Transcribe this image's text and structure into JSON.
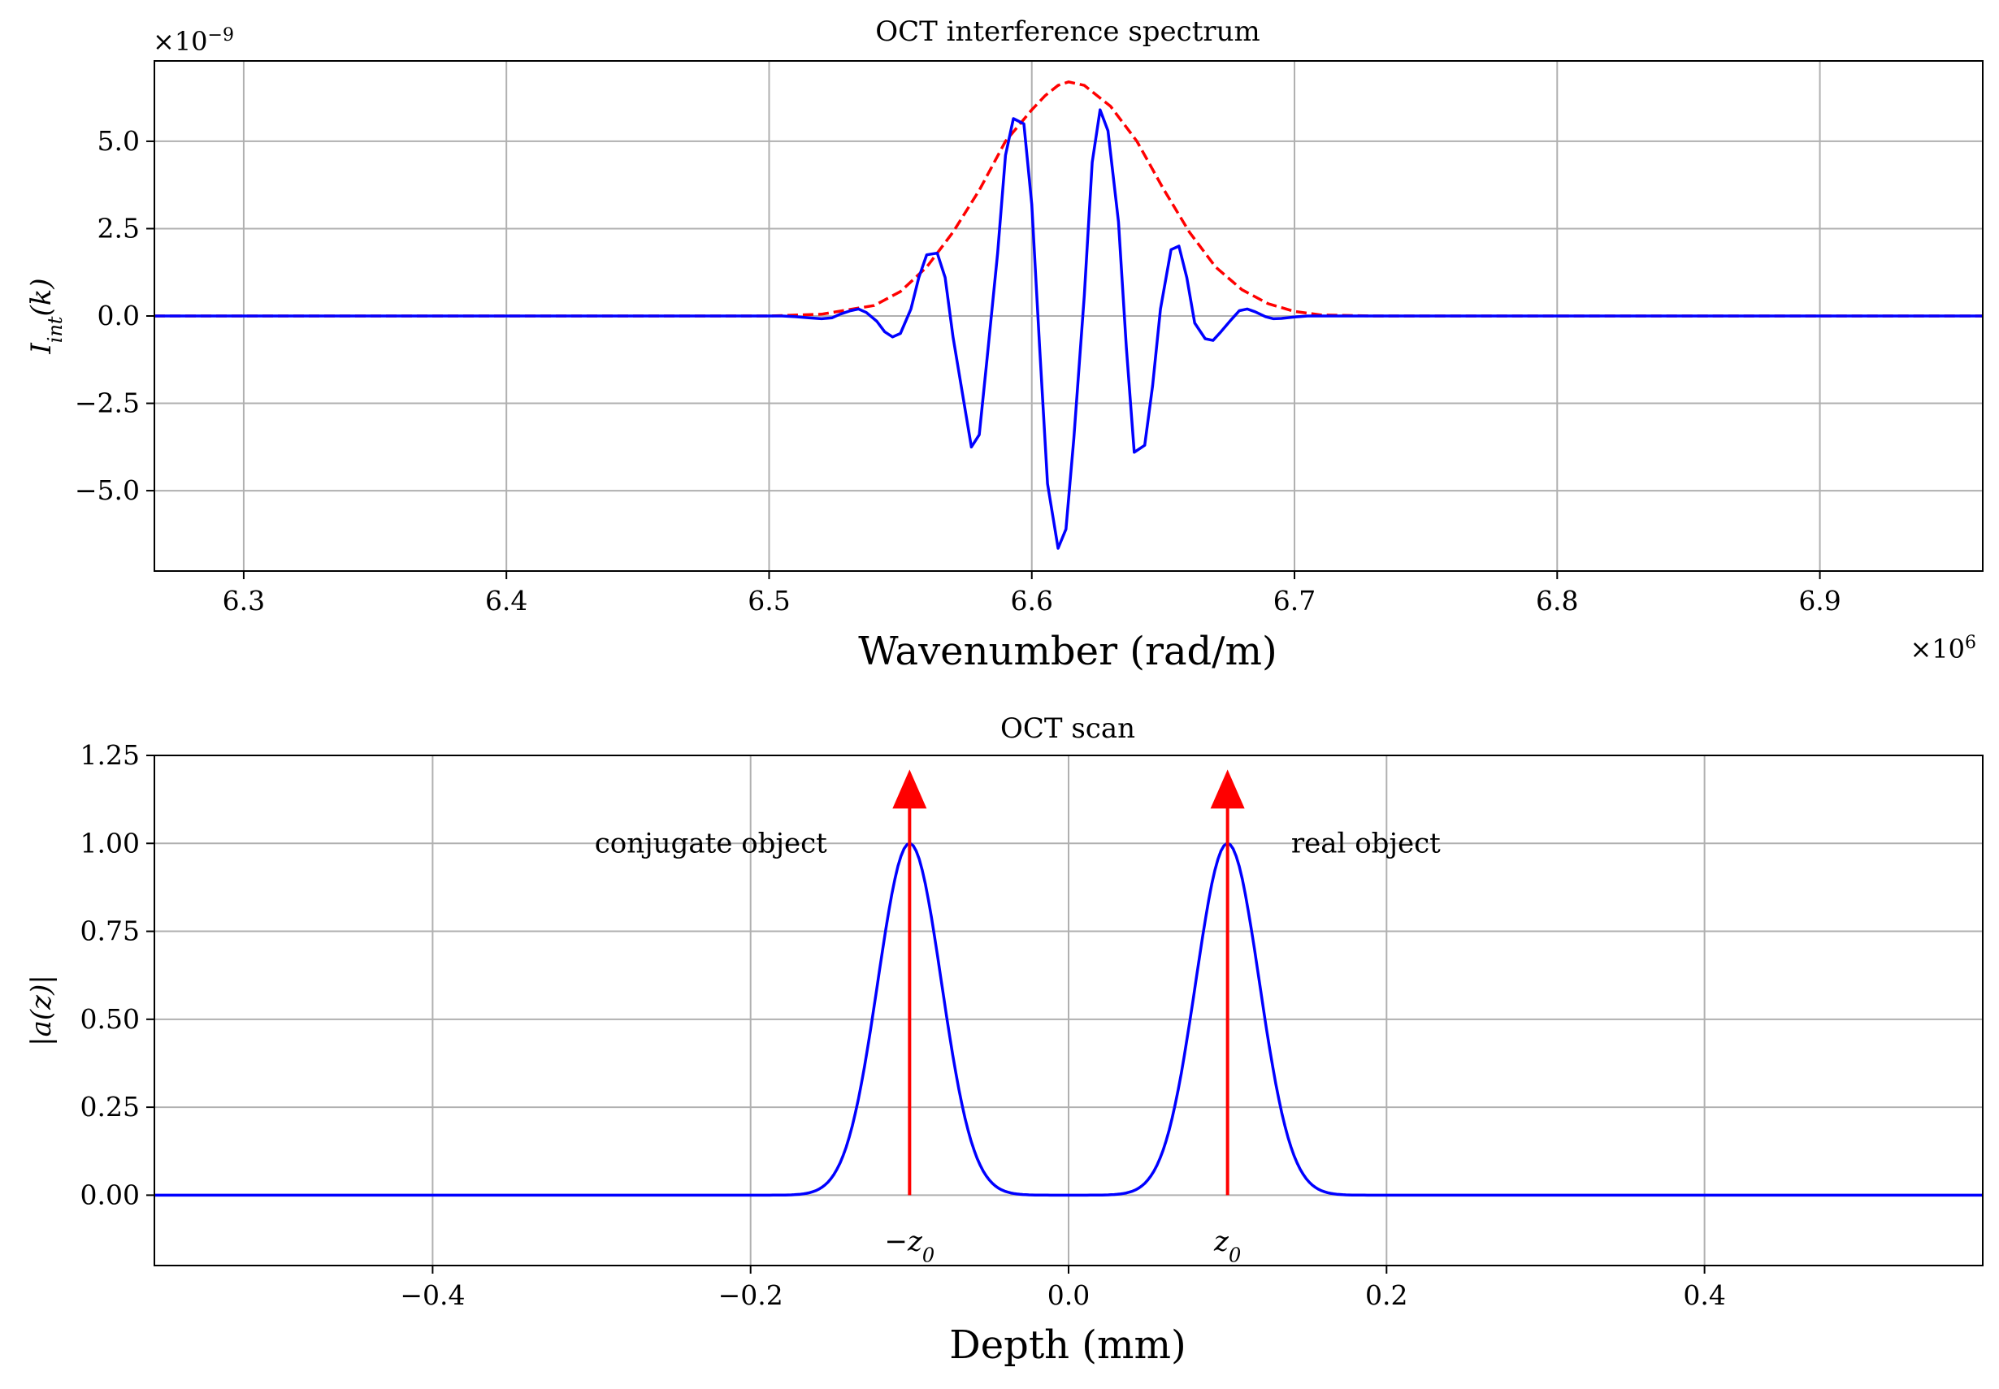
{
  "colors": {
    "curve": "#0000ff",
    "envelope": "#ff0000",
    "marker": "#ff0000",
    "grid": "#b0b0b0",
    "axes": "#000000"
  },
  "chart_data": [
    {
      "type": "line",
      "title": "OCT interference spectrum",
      "xlabel": "Wavenumber (rad/m)",
      "ylabel": "I_int(k)",
      "x_scale_label": "×10^6",
      "y_scale_label": "×10^-9",
      "xlim": [
        6.266,
        6.962
      ],
      "ylim": [
        -7.3,
        7.3
      ],
      "xticks": [
        6.3,
        6.4,
        6.5,
        6.6,
        6.7,
        6.8,
        6.9
      ],
      "xtick_labels": [
        "6.3",
        "6.4",
        "6.5",
        "6.6",
        "6.7",
        "6.8",
        "6.9"
      ],
      "yticks": [
        -5.0,
        -2.5,
        0.0,
        2.5,
        5.0
      ],
      "ytick_labels": [
        "−5.0",
        "−2.5",
        "0.0",
        "2.5",
        "5.0"
      ],
      "grid": true,
      "series": [
        {
          "style": "solid",
          "color": "#0000ff",
          "x": [
            6.266,
            6.5,
            6.505,
            6.51,
            6.515,
            6.52,
            6.524,
            6.527,
            6.531,
            6.534,
            6.537,
            6.541,
            6.544,
            6.547,
            6.55,
            6.554,
            6.557,
            6.56,
            6.564,
            6.567,
            6.57,
            6.574,
            6.577,
            6.58,
            6.583,
            6.587,
            6.59,
            6.593,
            6.597,
            6.6,
            6.603,
            6.606,
            6.61,
            6.613,
            6.616,
            6.62,
            6.623,
            6.626,
            6.629,
            6.633,
            6.636,
            6.639,
            6.643,
            6.646,
            6.649,
            6.653,
            6.656,
            6.659,
            6.662,
            6.666,
            6.669,
            6.672,
            6.676,
            6.679,
            6.682,
            6.685,
            6.689,
            6.692,
            6.695,
            6.7,
            6.705,
            6.71,
            6.962
          ],
          "y": [
            0.0,
            0.0,
            0.0,
            -0.02,
            -0.05,
            -0.08,
            -0.05,
            0.05,
            0.15,
            0.2,
            0.1,
            -0.15,
            -0.45,
            -0.6,
            -0.5,
            0.2,
            1.1,
            1.75,
            1.8,
            1.1,
            -0.6,
            -2.4,
            -3.75,
            -3.4,
            -1.2,
            1.8,
            4.6,
            5.65,
            5.5,
            3.2,
            -0.9,
            -4.8,
            -6.65,
            -6.1,
            -3.5,
            0.6,
            4.4,
            5.9,
            5.3,
            2.7,
            -0.9,
            -3.9,
            -3.7,
            -2.0,
            0.2,
            1.9,
            2.0,
            1.1,
            -0.2,
            -0.65,
            -0.7,
            -0.45,
            -0.1,
            0.15,
            0.2,
            0.12,
            -0.02,
            -0.08,
            -0.07,
            -0.03,
            0.0,
            0.0,
            0.0
          ]
        },
        {
          "style": "dashed",
          "color": "#ff0000",
          "x": [
            6.266,
            6.5,
            6.52,
            6.54,
            6.55,
            6.56,
            6.57,
            6.58,
            6.59,
            6.6,
            6.605,
            6.61,
            6.614,
            6.62,
            6.63,
            6.64,
            6.65,
            6.66,
            6.67,
            6.68,
            6.69,
            6.7,
            6.71,
            6.73,
            6.962
          ],
          "y": [
            0.0,
            0.0,
            0.05,
            0.3,
            0.7,
            1.4,
            2.4,
            3.6,
            5.0,
            5.9,
            6.3,
            6.6,
            6.7,
            6.6,
            6.0,
            5.0,
            3.65,
            2.4,
            1.4,
            0.75,
            0.35,
            0.13,
            0.03,
            0.0,
            0.0
          ]
        }
      ]
    },
    {
      "type": "line",
      "title": "OCT scan",
      "xlabel": "Depth (mm)",
      "ylabel": "|a(z)|",
      "xlim": [
        -0.575,
        0.575
      ],
      "ylim": [
        -0.2,
        1.25
      ],
      "xticks": [
        -0.4,
        -0.2,
        0.0,
        0.2,
        0.4
      ],
      "xtick_labels": [
        "−0.4",
        "−0.2",
        "0.0",
        "0.2",
        "0.4"
      ],
      "yticks": [
        0.0,
        0.25,
        0.5,
        0.75,
        1.0,
        1.25
      ],
      "ytick_labels": [
        "0.00",
        "0.25",
        "0.50",
        "0.75",
        "1.00",
        "1.25"
      ],
      "grid": true,
      "series": [
        {
          "style": "solid",
          "color": "#0000ff",
          "peaks_at": [
            -0.1,
            0.1
          ],
          "peak_height": 1.0,
          "peak_sigma": 0.02
        }
      ],
      "markers": [
        {
          "x": -0.1,
          "y_top": 1.21,
          "label": "−z0",
          "label_main": "−z",
          "label_sub": "0"
        },
        {
          "x": 0.1,
          "y_top": 1.21,
          "label": "z0",
          "label_main": "z",
          "label_sub": "0"
        }
      ],
      "annotations": [
        {
          "text": "conjugate object",
          "x": -0.225,
          "y": 1.0
        },
        {
          "text": "real object",
          "x": 0.187,
          "y": 1.0
        }
      ]
    }
  ]
}
